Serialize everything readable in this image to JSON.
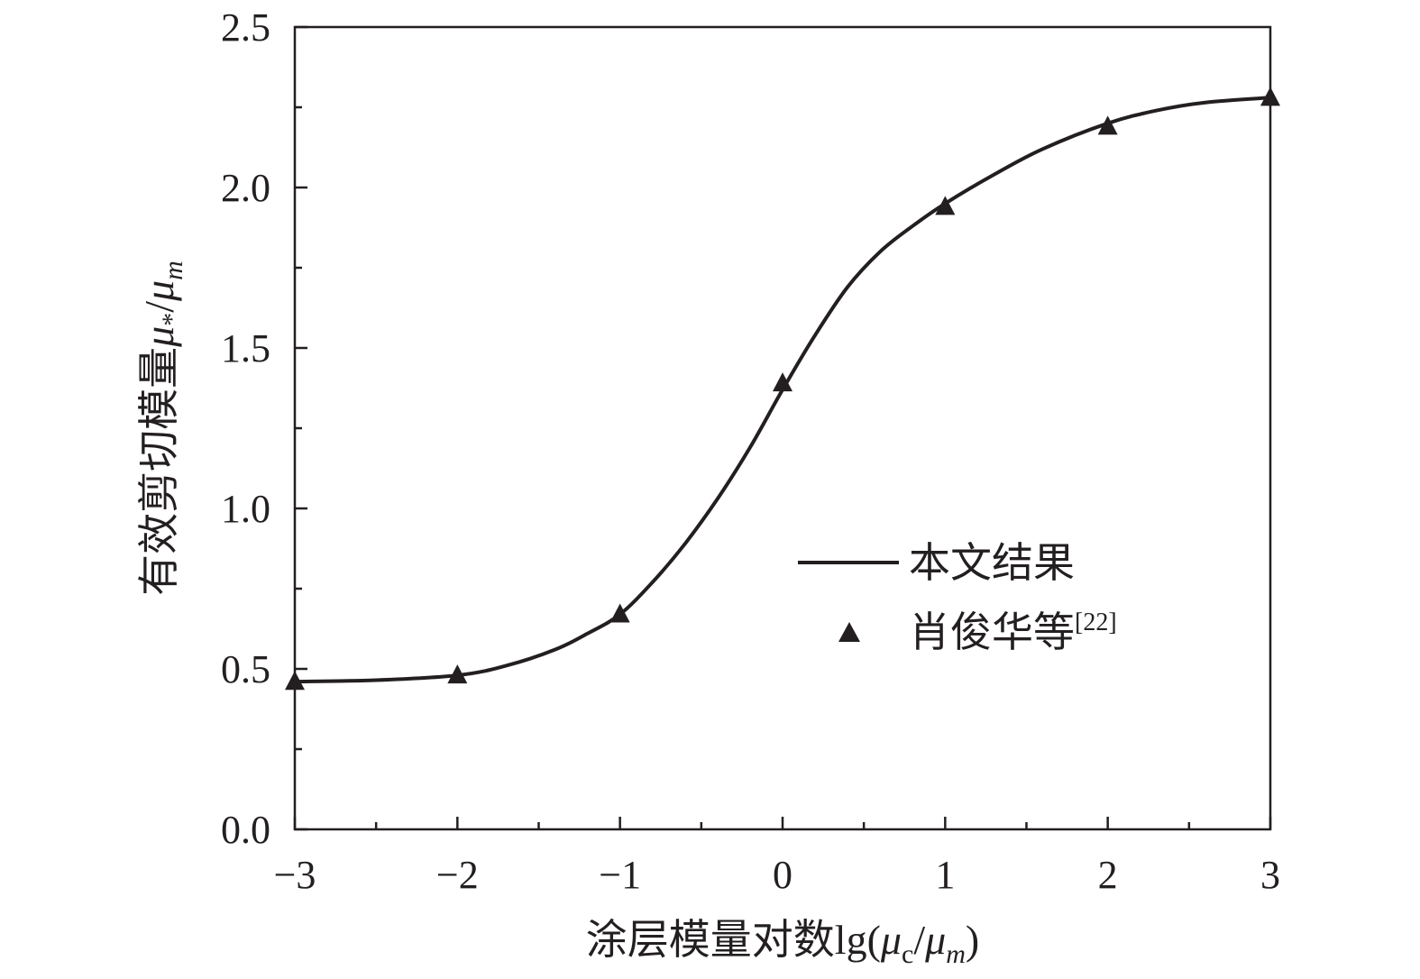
{
  "chart_data": {
    "type": "line",
    "xlabel": "涂层模量对数lg(μc/μm)",
    "xlabel_parts": {
      "prefix": "涂层模量对数lg(",
      "mu1": "μ",
      "sub1": "c",
      "slash": "/",
      "mu2": "μ",
      "sub2": "m",
      "suffix": ")"
    },
    "ylabel": "有效剪切模量μ*/μm",
    "ylabel_parts": {
      "prefix": "有效剪切模量",
      "mu1": "μ",
      "sub1": "*",
      "slash": "/",
      "mu2": "μ",
      "sub2": "m"
    },
    "xlim": [
      -3,
      3
    ],
    "ylim": [
      0,
      2.5
    ],
    "x_ticks": [
      -3,
      -2,
      -1,
      0,
      1,
      2,
      3
    ],
    "x_tick_labels": [
      "−3",
      "−2",
      "−1",
      "0",
      "1",
      "2",
      "3"
    ],
    "y_ticks": [
      0,
      0.5,
      1.0,
      1.5,
      2.0,
      2.5
    ],
    "y_tick_labels": [
      "0.0",
      "0.5",
      "1.0",
      "1.5",
      "2.0",
      "2.5"
    ],
    "grid": false,
    "legend_position": "center-right",
    "series": [
      {
        "name": "本文结果",
        "style": "solid-line",
        "color": "#231f20",
        "x": [
          -3,
          -2.5,
          -2,
          -1.7,
          -1.4,
          -1.2,
          -1,
          -0.8,
          -0.6,
          -0.4,
          -0.2,
          0,
          0.2,
          0.4,
          0.6,
          0.8,
          1,
          1.3,
          1.6,
          2,
          2.3,
          2.6,
          3
        ],
        "y": [
          0.46,
          0.465,
          0.48,
          0.51,
          0.56,
          0.61,
          0.67,
          0.77,
          0.89,
          1.03,
          1.19,
          1.37,
          1.54,
          1.69,
          1.8,
          1.88,
          1.95,
          2.04,
          2.12,
          2.2,
          2.24,
          2.265,
          2.28
        ]
      },
      {
        "name": "肖俊华等",
        "name_ref": "[22]",
        "style": "triangle-marker",
        "color": "#231f20",
        "x": [
          -3,
          -2,
          -1,
          0,
          1,
          2,
          3
        ],
        "y": [
          0.46,
          0.48,
          0.67,
          1.39,
          1.94,
          2.19,
          2.28
        ]
      }
    ]
  }
}
